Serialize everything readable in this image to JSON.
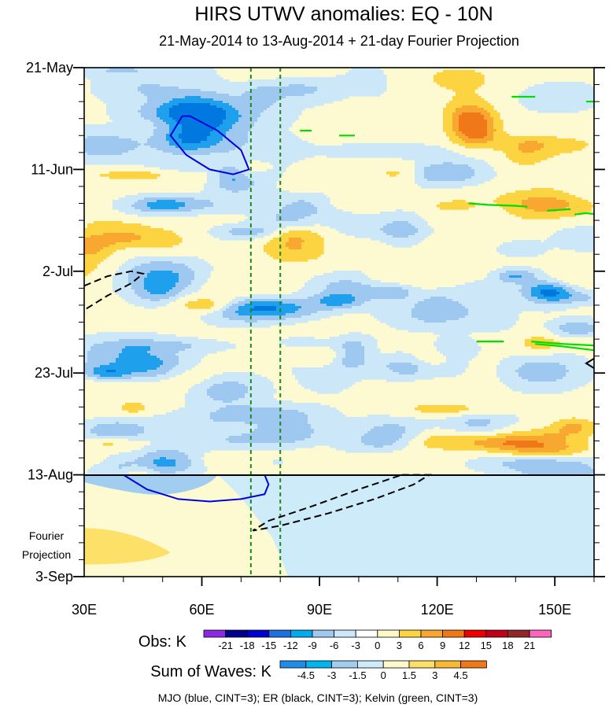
{
  "chart_data": {
    "type": "heatmap",
    "title": "HIRS UTWV anomalies: EQ - 10N",
    "subtitle": "21-May-2014 to 13-Aug-2014 + 21-day Fourier Projection",
    "x_axis": {
      "range": [
        30,
        160
      ],
      "unit": "degrees longitude",
      "ticks": [
        {
          "value": 30,
          "label": "30E"
        },
        {
          "value": 60,
          "label": "60E"
        },
        {
          "value": 90,
          "label": "90E"
        },
        {
          "value": 120,
          "label": "120E"
        },
        {
          "value": 150,
          "label": "150E"
        }
      ]
    },
    "y_axis": {
      "unit": "days since 21-May-2014",
      "range": [
        0,
        105
      ],
      "ticks": [
        {
          "value": 0,
          "label": "21-May"
        },
        {
          "value": 21,
          "label": "11-Jun"
        },
        {
          "value": 42,
          "label": "2-Jul"
        },
        {
          "value": 63,
          "label": "23-Jul"
        },
        {
          "value": 84,
          "label": "13-Aug"
        },
        {
          "value": 105,
          "label": "3-Sep"
        }
      ],
      "projection_start": 84,
      "projection_label": [
        "Fourier",
        "Projection"
      ]
    },
    "reference_longitudes": [
      72.5,
      80
    ],
    "obs_colorbar": {
      "label": "Obs: K",
      "levels": [
        "-21",
        "-18",
        "-15",
        "-12",
        "-9",
        "-6",
        "-3",
        "0",
        "3",
        "6",
        "9",
        "12",
        "15",
        "18",
        "21"
      ],
      "colors": [
        "#8a2be2",
        "#00008b",
        "#0000cd",
        "#1e6fe0",
        "#00aaee",
        "#9fc8f0",
        "#cce8f8",
        "#ffffff",
        "#fff8c8",
        "#fcd340",
        "#f8a830",
        "#f07818",
        "#ee0000",
        "#c00018",
        "#902828",
        "#ff66bb"
      ]
    },
    "waves_colorbar": {
      "label": "Sum of Waves: K",
      "levels": [
        "-4.5",
        "-3",
        "-1.5",
        "0",
        "1.5",
        "3",
        "4.5"
      ],
      "colors": [
        "#1e8ce8",
        "#00b4f0",
        "#a0cdf0",
        "#cdebf8",
        "#fff8c8",
        "#fce068",
        "#f8b830",
        "#f07818"
      ]
    },
    "contours": [
      {
        "wave": "MJO",
        "color": "#0000dd",
        "style": "solid",
        "sign": "negative",
        "points": [
          [
            55,
            10
          ],
          [
            52,
            14
          ],
          [
            56,
            18
          ],
          [
            62,
            21
          ],
          [
            68,
            22
          ],
          [
            72,
            21
          ],
          [
            70,
            17
          ],
          [
            64,
            13
          ],
          [
            57,
            10
          ],
          [
            55,
            10
          ]
        ]
      },
      {
        "wave": "MJO",
        "color": "#0000dd",
        "style": "solid",
        "sign": "negative",
        "points": [
          [
            40,
            84
          ],
          [
            46,
            87
          ],
          [
            54,
            89
          ],
          [
            62,
            89.5
          ],
          [
            70,
            89
          ],
          [
            76,
            88
          ],
          [
            77,
            86
          ],
          [
            76,
            84
          ]
        ]
      },
      {
        "wave": "ER",
        "color": "#000000",
        "style": "dashed",
        "sign": "negative",
        "points": [
          [
            30,
            45
          ],
          [
            36,
            43
          ],
          [
            42,
            42
          ],
          [
            45,
            42.5
          ],
          [
            42,
            44.5
          ],
          [
            36,
            47
          ],
          [
            30,
            50
          ]
        ]
      },
      {
        "wave": "ER",
        "color": "#000000",
        "style": "dashed",
        "sign": "negative",
        "points": [
          [
            111,
            84
          ],
          [
            118,
            84
          ],
          [
            114,
            86
          ],
          [
            104,
            89
          ],
          [
            92,
            92
          ],
          [
            80,
            94.5
          ],
          [
            73,
            95.5
          ],
          [
            77,
            93.5
          ],
          [
            88,
            90.5
          ],
          [
            100,
            87
          ],
          [
            111,
            84
          ]
        ]
      },
      {
        "wave": "Kelvin",
        "color": "#00dd00",
        "style": "solid",
        "sign": "positive",
        "points": [
          [
            139,
            6
          ],
          [
            145,
            6
          ]
        ]
      },
      {
        "wave": "Kelvin",
        "color": "#00dd00",
        "style": "solid",
        "sign": "positive",
        "points": [
          [
            158,
            7
          ],
          [
            160,
            7
          ]
        ]
      },
      {
        "wave": "Kelvin",
        "color": "#00dd00",
        "style": "solid",
        "sign": "positive",
        "points": [
          [
            85,
            13
          ],
          [
            88,
            13
          ]
        ]
      },
      {
        "wave": "Kelvin",
        "color": "#00dd00",
        "style": "solid",
        "sign": "positive",
        "points": [
          [
            95,
            14
          ],
          [
            99,
            14
          ]
        ]
      },
      {
        "wave": "Kelvin",
        "color": "#00dd00",
        "style": "solid",
        "sign": "positive",
        "points": [
          [
            128,
            28
          ],
          [
            133,
            28.3
          ],
          [
            140,
            28.5
          ],
          [
            143,
            28.7
          ]
        ]
      },
      {
        "wave": "Kelvin",
        "color": "#00dd00",
        "style": "solid",
        "sign": "positive",
        "points": [
          [
            148,
            29.5
          ],
          [
            154,
            29.2
          ]
        ]
      },
      {
        "wave": "Kelvin",
        "color": "#00dd00",
        "style": "solid",
        "sign": "positive",
        "points": [
          [
            155,
            30.3
          ],
          [
            158,
            30
          ],
          [
            160,
            30.2
          ]
        ]
      },
      {
        "wave": "Kelvin",
        "color": "#00dd00",
        "style": "solid",
        "sign": "positive",
        "points": [
          [
            130,
            56.5
          ],
          [
            137,
            56.5
          ]
        ]
      },
      {
        "wave": "Kelvin",
        "color": "#00dd00",
        "style": "solid",
        "sign": "positive",
        "points": [
          [
            145,
            57
          ],
          [
            152,
            57.5
          ],
          [
            160,
            58.3
          ]
        ]
      },
      {
        "wave": "Kelvin",
        "color": "#00dd00",
        "style": "solid",
        "sign": "positive",
        "points": [
          [
            144,
            56.5
          ],
          [
            152,
            57
          ],
          [
            160,
            57.3
          ]
        ]
      },
      {
        "wave": "ER",
        "color": "#000000",
        "style": "solid",
        "sign": "positive",
        "points": [
          [
            160,
            60
          ],
          [
            158,
            61
          ],
          [
            160,
            62
          ]
        ]
      }
    ],
    "footer": "MJO (blue, CINT=3); ER (black, CINT=3); Kelvin (green, CINT=3)"
  }
}
